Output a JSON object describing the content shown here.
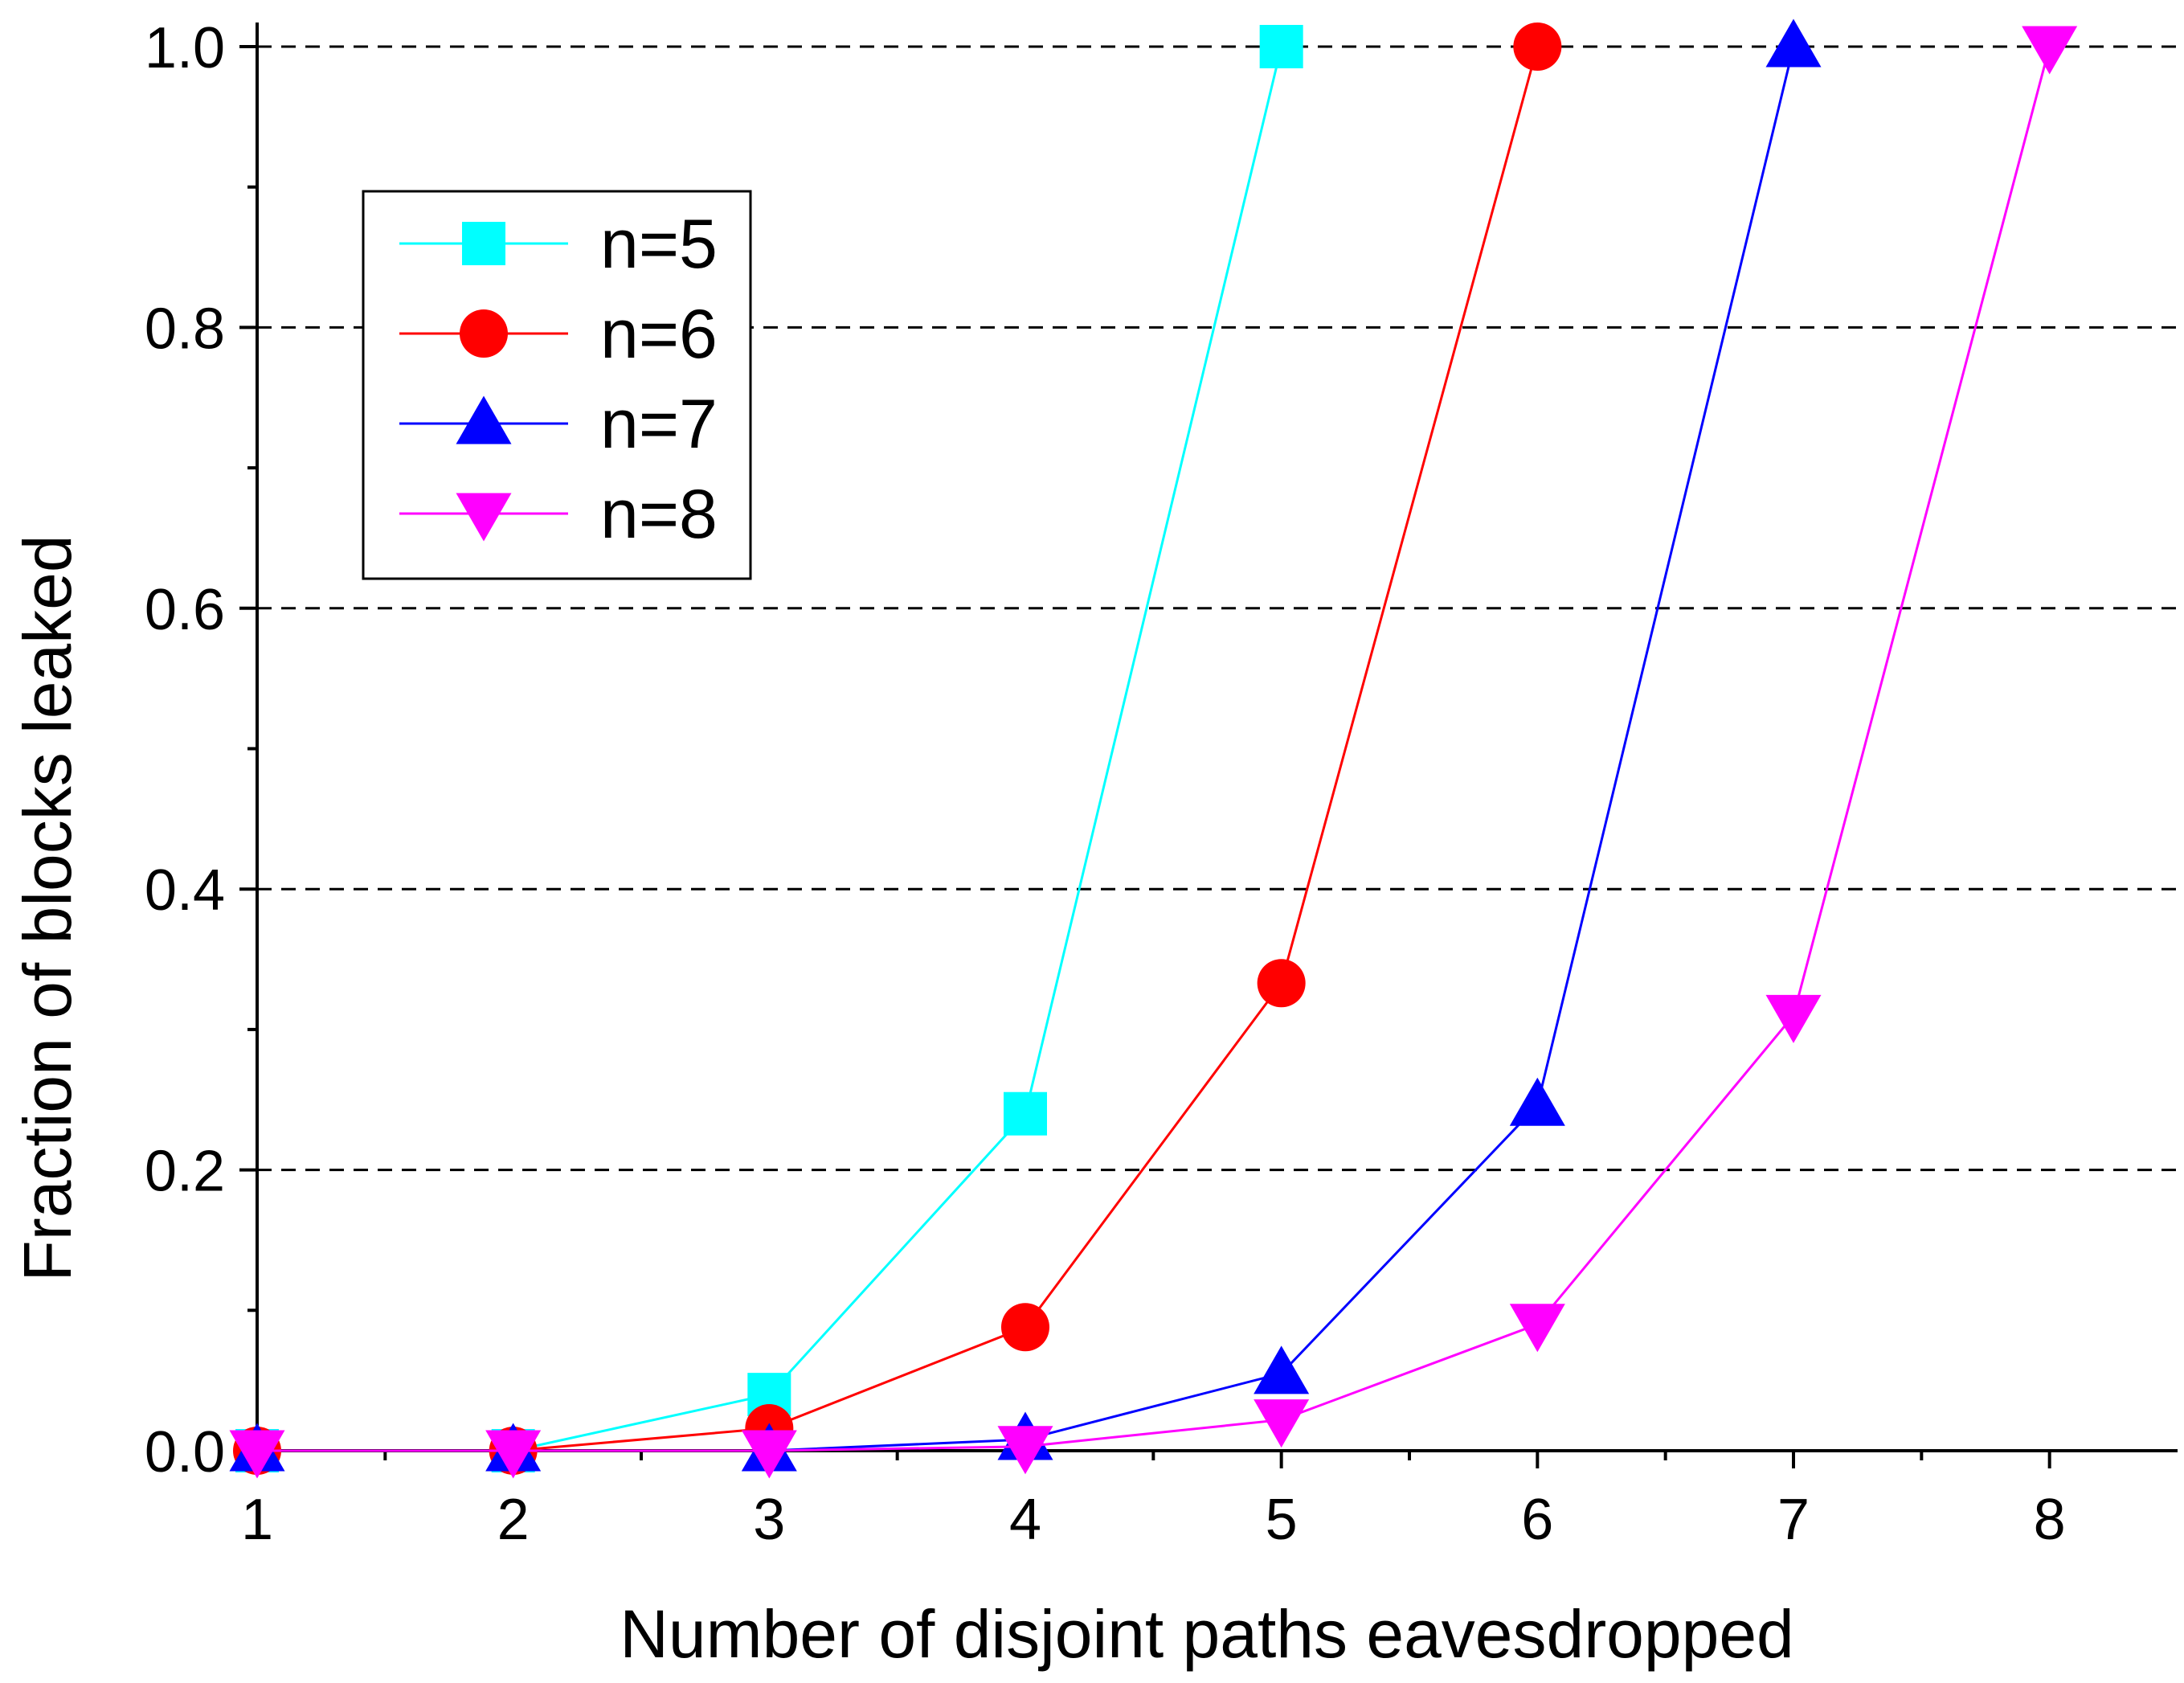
{
  "chart_data": {
    "type": "line",
    "title": "",
    "xlabel": "Number of disjoint paths eavesdropped",
    "ylabel": "Fraction of blocks leaked",
    "xlim": [
      1,
      8.5
    ],
    "ylim": [
      0,
      1.0
    ],
    "x_ticks": [
      1,
      2,
      3,
      4,
      5,
      6,
      7,
      8
    ],
    "y_ticks": [
      "0.0",
      "0.2",
      "0.4",
      "0.6",
      "0.8",
      "1.0"
    ],
    "grid": "horizontal dashed at major y ticks",
    "legend_position": "upper-left",
    "series": [
      {
        "name": "n=5",
        "color": "#00ffff",
        "marker": "square",
        "x": [
          1,
          2,
          3,
          4,
          5
        ],
        "values": [
          0.0,
          0.0,
          0.04,
          0.24,
          1.0
        ]
      },
      {
        "name": "n=6",
        "color": "#ff0000",
        "marker": "circle",
        "x": [
          1,
          2,
          3,
          4,
          5,
          6
        ],
        "values": [
          0.0,
          0.0,
          0.016,
          0.088,
          0.333,
          1.0
        ]
      },
      {
        "name": "n=7",
        "color": "#0000ff",
        "marker": "triangle-up",
        "x": [
          1,
          2,
          3,
          4,
          5,
          6,
          7
        ],
        "values": [
          0.0,
          0.0,
          0.0,
          0.008,
          0.055,
          0.246,
          1.0
        ]
      },
      {
        "name": "n=8",
        "color": "#ff00ff",
        "marker": "triangle-down",
        "x": [
          1,
          2,
          3,
          4,
          5,
          6,
          7,
          8
        ],
        "values": [
          0.0,
          0.0,
          0.0,
          0.003,
          0.022,
          0.09,
          0.31,
          1.0
        ]
      }
    ]
  }
}
